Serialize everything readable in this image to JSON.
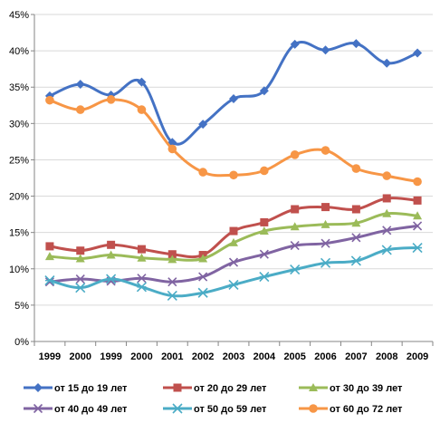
{
  "chart_data": {
    "type": "line",
    "categories": [
      "1999",
      "2000",
      "1999",
      "2000",
      "2001",
      "2002",
      "2003",
      "2004",
      "2005",
      "2006",
      "2007",
      "2008",
      "2009"
    ],
    "y_ticks": [
      "0%",
      "5%",
      "10%",
      "15%",
      "20%",
      "25%",
      "30%",
      "35%",
      "40%",
      "45%"
    ],
    "ylim": [
      0,
      45
    ],
    "grid": true,
    "legend_position": "bottom",
    "series": [
      {
        "name": "от 15 до 19 лет",
        "color": "#4472C4",
        "marker": "diamond",
        "values": [
          33.8,
          35.4,
          33.9,
          35.7,
          27.4,
          29.9,
          33.4,
          34.5,
          40.9,
          40.1,
          41.0,
          38.3,
          39.7
        ]
      },
      {
        "name": "от 20 до 29 лет",
        "color": "#C0504D",
        "marker": "square",
        "values": [
          13.1,
          12.5,
          13.3,
          12.7,
          12.0,
          11.9,
          15.2,
          16.4,
          18.2,
          18.5,
          18.2,
          19.7,
          19.4
        ]
      },
      {
        "name": "от 30 до 39 лет",
        "color": "#9BBB59",
        "marker": "triangle",
        "values": [
          11.7,
          11.4,
          11.9,
          11.5,
          11.3,
          11.4,
          13.6,
          15.2,
          15.8,
          16.1,
          16.3,
          17.6,
          17.3
        ]
      },
      {
        "name": "от 40 до 49 лет",
        "color": "#8064A2",
        "marker": "x",
        "values": [
          8.2,
          8.6,
          8.3,
          8.7,
          8.2,
          8.9,
          10.9,
          12.0,
          13.2,
          13.5,
          14.3,
          15.3,
          15.9
        ]
      },
      {
        "name": "от 50 до 59 лет",
        "color": "#4BACC6",
        "marker": "star",
        "values": [
          8.4,
          7.4,
          8.6,
          7.5,
          6.3,
          6.7,
          7.8,
          8.9,
          9.9,
          10.8,
          11.1,
          12.6,
          12.9
        ]
      },
      {
        "name": "от 60 до 72 лет",
        "color": "#F79646",
        "marker": "circle",
        "values": [
          33.2,
          31.9,
          33.3,
          31.9,
          26.5,
          23.3,
          22.9,
          23.5,
          25.7,
          26.3,
          23.8,
          22.8,
          22.0
        ]
      }
    ]
  }
}
